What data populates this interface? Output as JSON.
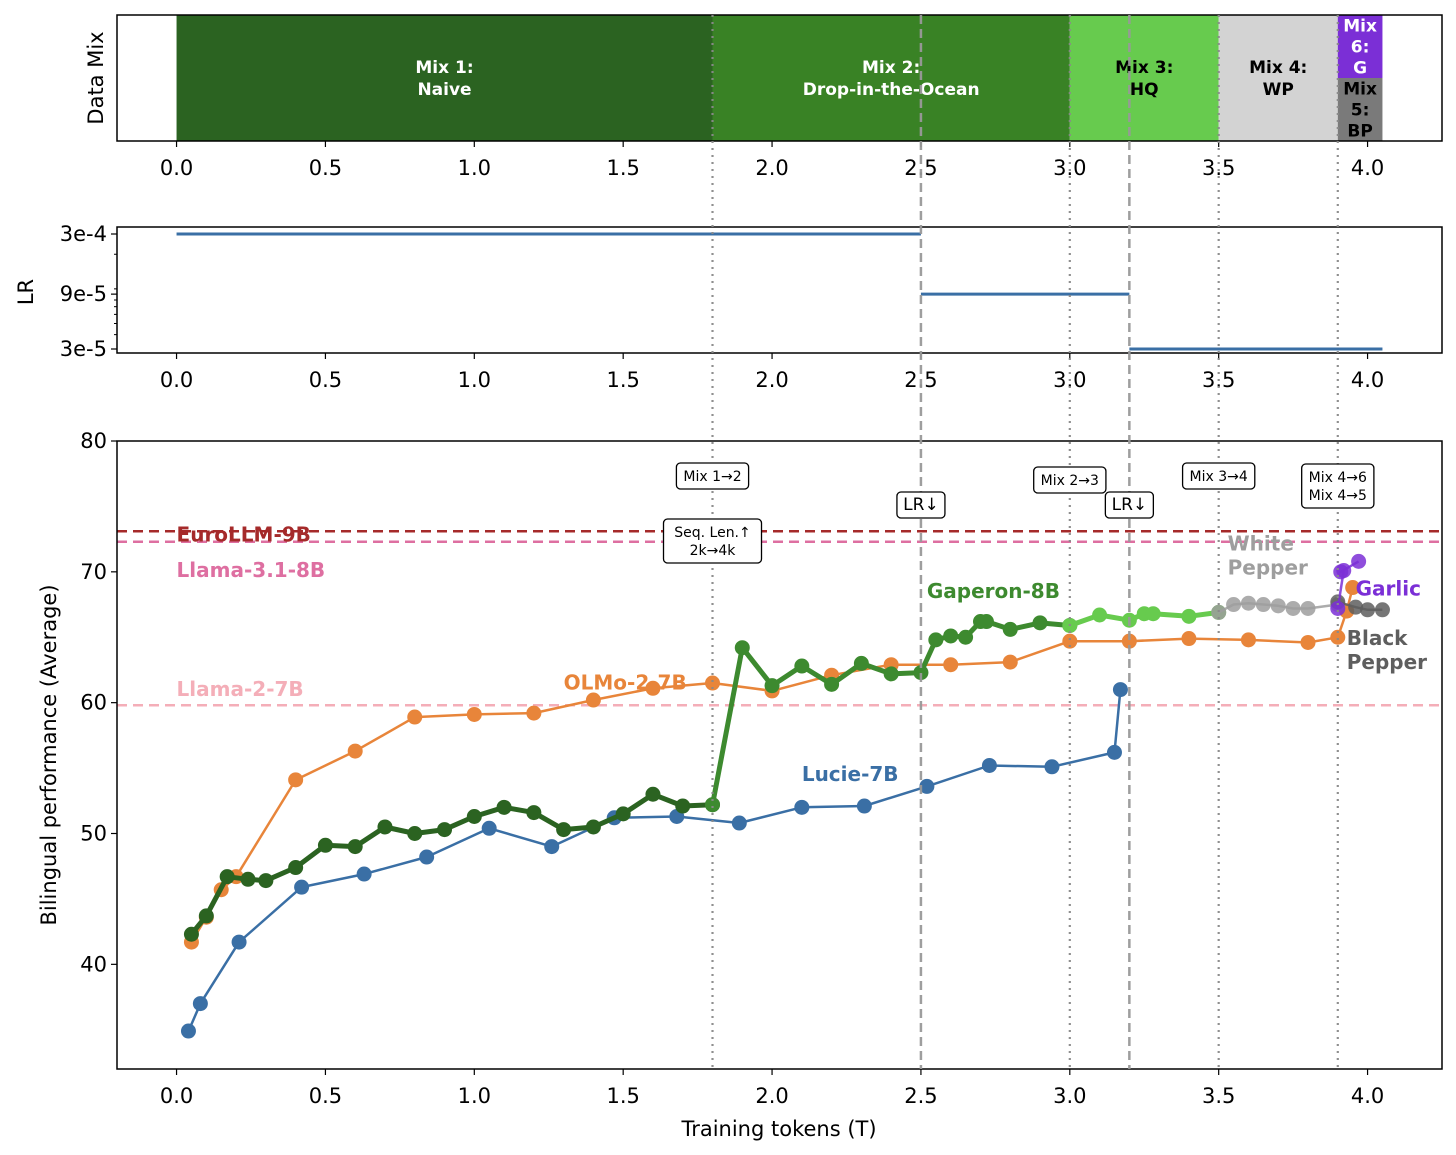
{
  "chart_data": [
    {
      "type": "bar",
      "panel": "data-mix",
      "ylabel": "Data Mix",
      "xlim": [
        -0.2,
        4.25
      ],
      "xticks": [
        "0.0",
        "0.5",
        "1.0",
        "1.5",
        "2.0",
        "2.5",
        "3.0",
        "3.5",
        "4.0"
      ],
      "segments": [
        {
          "label": "Mix 1:\nNaive",
          "start": 0.0,
          "end": 1.8,
          "color": "#2b6321",
          "text_color": "#ffffff",
          "y0": 0,
          "y1": 1
        },
        {
          "label": "Mix 2:\nDrop-in-the-Ocean",
          "start": 1.8,
          "end": 3.0,
          "color": "#398225",
          "text_color": "#ffffff",
          "y0": 0,
          "y1": 1
        },
        {
          "label": "Mix 3:\nHQ",
          "start": 3.0,
          "end": 3.5,
          "color": "#67cb4e",
          "text_color": "#000000",
          "y0": 0,
          "y1": 1
        },
        {
          "label": "Mix 4:\nWP",
          "start": 3.5,
          "end": 3.9,
          "color": "#d3d3d3",
          "text_color": "#000000",
          "y0": 0,
          "y1": 1
        },
        {
          "label": "Mix\n6:\nG",
          "start": 3.9,
          "end": 4.05,
          "color": "#7b2fd6",
          "text_color": "#ffffff",
          "y0": 0.5,
          "y1": 1
        },
        {
          "label": "Mix\n5:\nBP",
          "start": 3.9,
          "end": 4.05,
          "color": "#7a7a7a",
          "text_color": "#000000",
          "y0": 0,
          "y1": 0.5
        }
      ]
    },
    {
      "type": "line",
      "panel": "learning-rate",
      "ylabel": "LR",
      "yscale": "log",
      "xlim": [
        -0.2,
        4.25
      ],
      "yticks": [
        "3e-4",
        "9e-5",
        "3e-5"
      ],
      "xticks": [
        "0.0",
        "0.5",
        "1.0",
        "1.5",
        "2.0",
        "2.5",
        "3.0",
        "3.5",
        "4.0"
      ],
      "segments": [
        {
          "x0": 0.0,
          "x1": 2.5,
          "value": 0.0003
        },
        {
          "x0": 2.5,
          "x1": 3.2,
          "value": 9e-05
        },
        {
          "x0": 3.2,
          "x1": 4.05,
          "value": 3e-05
        }
      ],
      "color": "#3a6fa5"
    },
    {
      "type": "line",
      "panel": "performance",
      "title": "",
      "xlabel": "Training tokens (T)",
      "ylabel": "Bilingual performance (Average)",
      "xlim": [
        -0.2,
        4.25
      ],
      "ylim": [
        32,
        80
      ],
      "xticks": [
        "0.0",
        "0.5",
        "1.0",
        "1.5",
        "2.0",
        "2.5",
        "3.0",
        "3.5",
        "4.0"
      ],
      "yticks": [
        "40",
        "50",
        "60",
        "70",
        "80"
      ],
      "reference_lines": [
        {
          "name": "EuroLLM-9B",
          "value": 73.1,
          "color": "#a52a2a",
          "style": "dashed"
        },
        {
          "name": "Llama-3.1-8B",
          "value": 72.3,
          "color": "#de6fa1",
          "style": "dashed"
        },
        {
          "name": "Llama-2-7B",
          "value": 59.8,
          "color": "#f4aeb8",
          "style": "dashed"
        }
      ],
      "vertical_markers": [
        {
          "x": 1.8,
          "style": "dotted",
          "labels": [
            "Mix 1→2",
            "Seq. Len.↑\n2k→4k"
          ]
        },
        {
          "x": 2.5,
          "style": "dashed",
          "labels": [
            "LR↓"
          ]
        },
        {
          "x": 3.0,
          "style": "dotted",
          "labels": [
            "Mix 2→3"
          ]
        },
        {
          "x": 3.2,
          "style": "dashed",
          "labels": [
            "LR↓"
          ]
        },
        {
          "x": 3.5,
          "style": "dotted",
          "labels": [
            "Mix 3→4"
          ]
        },
        {
          "x": 3.9,
          "style": "dotted",
          "labels": [
            "Mix 4→6\nMix 4→5"
          ]
        }
      ],
      "series": [
        {
          "name": "OLMo-2-7B",
          "color": "#e8853a",
          "x": [
            0.05,
            0.1,
            0.15,
            0.2,
            0.4,
            0.6,
            0.8,
            1.0,
            1.2,
            1.4,
            1.6,
            1.8,
            2.0,
            2.2,
            2.4,
            2.6,
            2.8,
            3.0,
            3.2,
            3.4,
            3.6,
            3.8,
            3.9,
            3.93,
            3.95
          ],
          "values": [
            41.7,
            43.6,
            45.7,
            46.7,
            54.1,
            56.3,
            58.9,
            59.1,
            59.2,
            60.2,
            61.1,
            61.5,
            60.9,
            62.1,
            62.9,
            62.9,
            63.1,
            64.7,
            64.7,
            64.9,
            64.8,
            64.6,
            65.0,
            67.0,
            68.8
          ]
        },
        {
          "name": "Lucie-7B",
          "color": "#3a6fa5",
          "x": [
            0.04,
            0.08,
            0.21,
            0.42,
            0.63,
            0.84,
            1.05,
            1.26,
            1.47,
            1.68,
            1.89,
            2.1,
            2.31,
            2.52,
            2.73,
            2.94,
            3.15,
            3.17
          ],
          "values": [
            34.9,
            37.0,
            41.7,
            45.9,
            46.9,
            48.2,
            50.4,
            49.0,
            51.2,
            51.3,
            50.8,
            52.0,
            52.1,
            53.6,
            55.2,
            55.1,
            56.2,
            61.0
          ]
        },
        {
          "name": "Gaperon-8B (Mix 1)",
          "color": "#2b6321",
          "x": [
            0.05,
            0.1,
            0.17,
            0.24,
            0.3,
            0.4,
            0.5,
            0.6,
            0.7,
            0.8,
            0.9,
            1.0,
            1.1,
            1.2,
            1.3,
            1.4,
            1.5,
            1.6,
            1.7,
            1.8
          ],
          "values": [
            42.3,
            43.7,
            46.7,
            46.5,
            46.4,
            47.4,
            49.1,
            49.0,
            50.5,
            50.0,
            50.3,
            51.3,
            52.0,
            51.6,
            50.3,
            50.5,
            51.5,
            53.0,
            52.1,
            52.2
          ]
        },
        {
          "name": "Gaperon-8B",
          "color": "#3d8a2f",
          "x": [
            1.8,
            1.9,
            2.0,
            2.1,
            2.2,
            2.3,
            2.4,
            2.5,
            2.55,
            2.6,
            2.65,
            2.7,
            2.72,
            2.8,
            2.9,
            3.0
          ],
          "values": [
            52.2,
            64.2,
            61.3,
            62.8,
            61.4,
            63.0,
            62.2,
            62.3,
            64.8,
            65.1,
            65.0,
            66.2,
            66.2,
            65.6,
            66.1,
            65.9
          ]
        },
        {
          "name": "Gaperon-8B (Mix 3)",
          "color": "#67cb4e",
          "x": [
            3.0,
            3.1,
            3.2,
            3.25,
            3.28,
            3.4,
            3.5
          ],
          "values": [
            65.9,
            66.7,
            66.3,
            66.8,
            66.8,
            66.6,
            66.9
          ]
        },
        {
          "name": "White Pepper",
          "color": "#9e9e9e",
          "x": [
            3.5,
            3.55,
            3.6,
            3.65,
            3.7,
            3.75,
            3.8,
            3.9
          ],
          "values": [
            66.9,
            67.5,
            67.6,
            67.5,
            67.4,
            67.2,
            67.2,
            67.5
          ]
        },
        {
          "name": "Black Pepper",
          "color": "#5e5e5e",
          "x": [
            3.9,
            3.96,
            4.0,
            4.05
          ],
          "values": [
            67.7,
            67.3,
            67.1,
            67.1
          ]
        },
        {
          "name": "Garlic",
          "color": "#7b2fd6",
          "x": [
            3.9,
            3.92,
            3.91,
            3.97
          ],
          "values": [
            67.2,
            70.1,
            70.0,
            70.8
          ]
        }
      ],
      "series_labels": [
        "EuroLLM-9B",
        "Llama-3.1-8B",
        "Llama-2-7B",
        "OLMo-2-7B",
        "Lucie-7B",
        "Gaperon-8B",
        "White\nPepper",
        "Garlic",
        "Black\nPepper"
      ]
    }
  ]
}
